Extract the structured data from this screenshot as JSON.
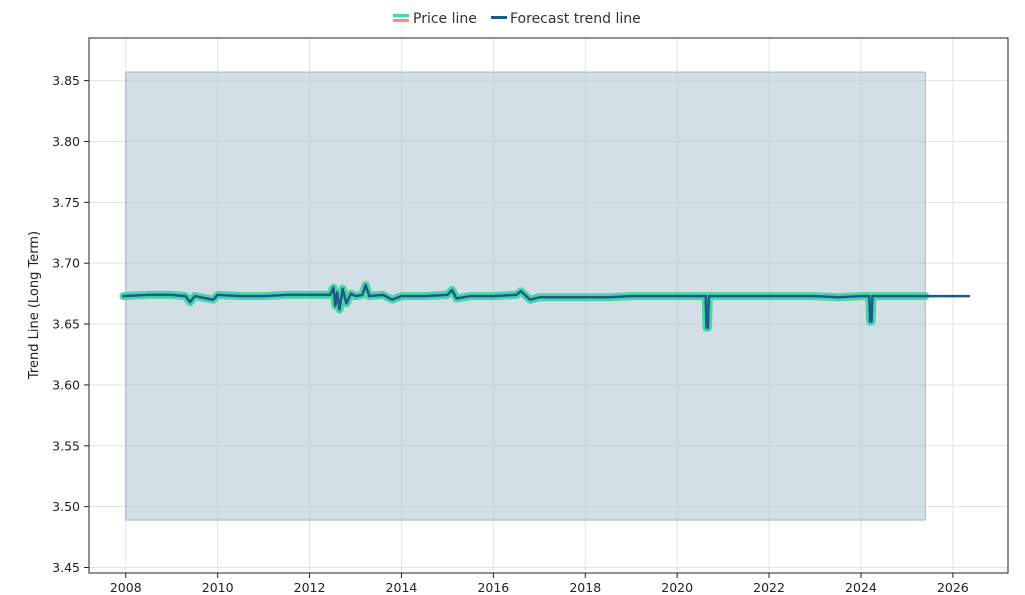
{
  "chart_data": {
    "type": "line",
    "title": "",
    "xlabel": "",
    "ylabel": "Trend Line (Long Term)",
    "xlim": [
      2007.2,
      2027.2
    ],
    "ylim": [
      3.4455,
      3.885
    ],
    "x_ticks": [
      2008,
      2010,
      2012,
      2014,
      2016,
      2018,
      2020,
      2022,
      2024,
      2026
    ],
    "y_ticks": [
      3.45,
      3.5,
      3.55,
      3.6,
      3.65,
      3.7,
      3.75,
      3.8,
      3.85
    ],
    "grid": true,
    "legend_placement": "top-center",
    "legend": [
      {
        "label": "Price line",
        "colors": [
          "#48d6a6",
          "#f0956e"
        ]
      },
      {
        "label": "Forecast trend line",
        "colors": [
          "#1d5a8c"
        ]
      }
    ],
    "band": {
      "x_start": 2008.0,
      "x_end": 2025.4,
      "upper": 3.857,
      "lower": 3.489,
      "color": "#a6bfd0"
    },
    "series": [
      {
        "name": "Price line",
        "color": "#48d6a6",
        "points": [
          [
            2007.95,
            3.673
          ],
          [
            2008.5,
            3.674
          ],
          [
            2009.0,
            3.674
          ],
          [
            2009.3,
            3.673
          ],
          [
            2009.4,
            3.668
          ],
          [
            2009.5,
            3.673
          ],
          [
            2009.9,
            3.67
          ],
          [
            2010.0,
            3.674
          ],
          [
            2010.5,
            3.673
          ],
          [
            2011.0,
            3.673
          ],
          [
            2011.5,
            3.674
          ],
          [
            2012.0,
            3.674
          ],
          [
            2012.45,
            3.674
          ],
          [
            2012.52,
            3.68
          ],
          [
            2012.56,
            3.665
          ],
          [
            2012.6,
            3.676
          ],
          [
            2012.65,
            3.662
          ],
          [
            2012.72,
            3.679
          ],
          [
            2012.8,
            3.667
          ],
          [
            2012.9,
            3.675
          ],
          [
            2013.0,
            3.673
          ],
          [
            2013.15,
            3.674
          ],
          [
            2013.22,
            3.682
          ],
          [
            2013.3,
            3.673
          ],
          [
            2013.6,
            3.674
          ],
          [
            2013.8,
            3.67
          ],
          [
            2014.0,
            3.673
          ],
          [
            2014.5,
            3.673
          ],
          [
            2015.0,
            3.674
          ],
          [
            2015.1,
            3.678
          ],
          [
            2015.2,
            3.671
          ],
          [
            2015.5,
            3.673
          ],
          [
            2016.0,
            3.673
          ],
          [
            2016.5,
            3.674
          ],
          [
            2016.6,
            3.677
          ],
          [
            2016.8,
            3.67
          ],
          [
            2017.0,
            3.672
          ],
          [
            2017.5,
            3.672
          ],
          [
            2018.0,
            3.672
          ],
          [
            2018.5,
            3.672
          ],
          [
            2019.0,
            3.673
          ],
          [
            2019.5,
            3.673
          ],
          [
            2020.0,
            3.673
          ],
          [
            2020.55,
            3.673
          ],
          [
            2020.62,
            3.673
          ],
          [
            2020.64,
            3.647
          ],
          [
            2020.67,
            3.647
          ],
          [
            2020.69,
            3.673
          ],
          [
            2021.0,
            3.673
          ],
          [
            2021.5,
            3.673
          ],
          [
            2022.0,
            3.673
          ],
          [
            2022.5,
            3.673
          ],
          [
            2023.0,
            3.673
          ],
          [
            2023.5,
            3.672
          ],
          [
            2024.0,
            3.673
          ],
          [
            2024.18,
            3.673
          ],
          [
            2024.2,
            3.652
          ],
          [
            2024.23,
            3.652
          ],
          [
            2024.25,
            3.673
          ],
          [
            2024.6,
            3.673
          ],
          [
            2025.0,
            3.673
          ],
          [
            2025.4,
            3.673
          ]
        ]
      },
      {
        "name": "Forecast trend line",
        "color": "#1d5a8c",
        "points": [
          [
            2007.95,
            3.673
          ],
          [
            2008.5,
            3.674
          ],
          [
            2009.0,
            3.674
          ],
          [
            2009.3,
            3.673
          ],
          [
            2009.4,
            3.668
          ],
          [
            2009.5,
            3.673
          ],
          [
            2009.9,
            3.67
          ],
          [
            2010.0,
            3.674
          ],
          [
            2010.5,
            3.673
          ],
          [
            2011.0,
            3.673
          ],
          [
            2011.5,
            3.674
          ],
          [
            2012.0,
            3.674
          ],
          [
            2012.45,
            3.674
          ],
          [
            2012.52,
            3.68
          ],
          [
            2012.56,
            3.665
          ],
          [
            2012.6,
            3.676
          ],
          [
            2012.65,
            3.662
          ],
          [
            2012.72,
            3.679
          ],
          [
            2012.8,
            3.667
          ],
          [
            2012.9,
            3.675
          ],
          [
            2013.0,
            3.673
          ],
          [
            2013.15,
            3.674
          ],
          [
            2013.22,
            3.682
          ],
          [
            2013.3,
            3.673
          ],
          [
            2013.6,
            3.674
          ],
          [
            2013.8,
            3.67
          ],
          [
            2014.0,
            3.673
          ],
          [
            2014.5,
            3.673
          ],
          [
            2015.0,
            3.674
          ],
          [
            2015.1,
            3.678
          ],
          [
            2015.2,
            3.671
          ],
          [
            2015.5,
            3.673
          ],
          [
            2016.0,
            3.673
          ],
          [
            2016.5,
            3.674
          ],
          [
            2016.6,
            3.677
          ],
          [
            2016.8,
            3.67
          ],
          [
            2017.0,
            3.672
          ],
          [
            2017.5,
            3.672
          ],
          [
            2018.0,
            3.672
          ],
          [
            2018.5,
            3.672
          ],
          [
            2019.0,
            3.673
          ],
          [
            2019.5,
            3.673
          ],
          [
            2020.0,
            3.673
          ],
          [
            2020.55,
            3.673
          ],
          [
            2020.62,
            3.673
          ],
          [
            2020.64,
            3.647
          ],
          [
            2020.67,
            3.647
          ],
          [
            2020.69,
            3.673
          ],
          [
            2021.0,
            3.673
          ],
          [
            2021.5,
            3.673
          ],
          [
            2022.0,
            3.673
          ],
          [
            2022.5,
            3.673
          ],
          [
            2023.0,
            3.673
          ],
          [
            2023.5,
            3.672
          ],
          [
            2024.0,
            3.673
          ],
          [
            2024.18,
            3.673
          ],
          [
            2024.2,
            3.652
          ],
          [
            2024.23,
            3.652
          ],
          [
            2024.25,
            3.673
          ],
          [
            2024.6,
            3.673
          ],
          [
            2025.0,
            3.673
          ],
          [
            2025.4,
            3.673
          ],
          [
            2026.0,
            3.673
          ],
          [
            2026.35,
            3.673
          ]
        ]
      }
    ]
  }
}
